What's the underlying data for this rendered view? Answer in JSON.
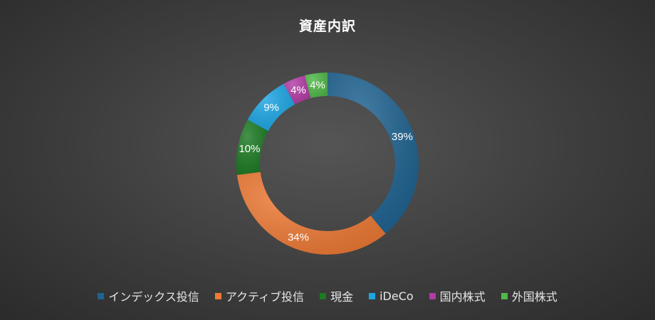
{
  "chart_data": {
    "type": "pie",
    "variant": "donut",
    "title": "資産内訳",
    "categories": [
      "インデックス投信",
      "アクティブ投信",
      "現金",
      "iDeCo",
      "国内株式",
      "外国株式"
    ],
    "values": [
      39,
      34,
      10,
      9,
      4,
      4
    ],
    "labels": [
      "39%",
      "34%",
      "10%",
      "9%",
      "4%",
      "4%"
    ],
    "colors": [
      "#1f6391",
      "#ee7a35",
      "#1c7a23",
      "#1ca6e4",
      "#b33ba6",
      "#4fb848"
    ],
    "legend_position": "bottom",
    "start_angle": "top",
    "direction": "clockwise"
  }
}
